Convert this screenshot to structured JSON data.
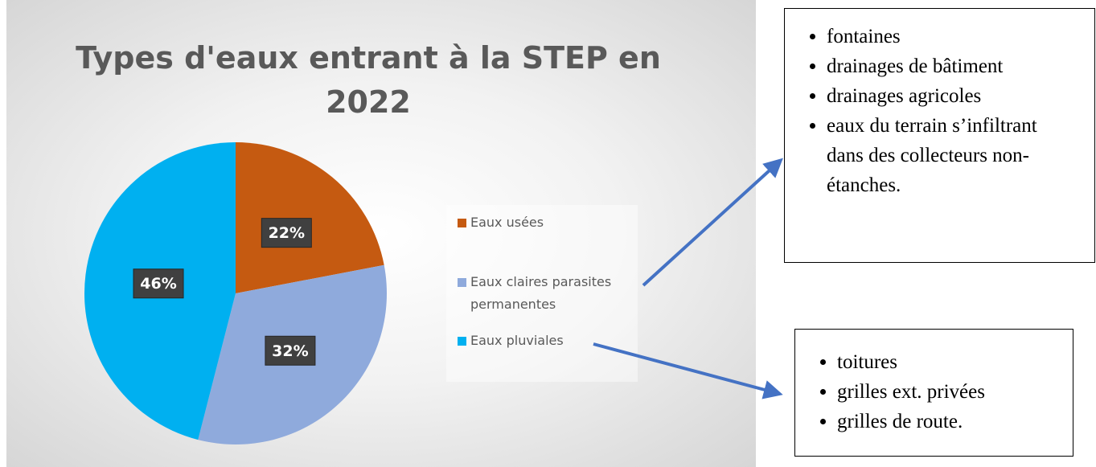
{
  "chart_data": {
    "type": "pie",
    "title": "Types d'eaux entrant à la STEP en 2022",
    "categories": [
      "Eaux usées",
      "Eaux claires parasites permanentes",
      "Eaux pluviales"
    ],
    "values": [
      22,
      32,
      46
    ],
    "value_labels": [
      "22%",
      "32%",
      "46%"
    ],
    "colors": [
      "#c55a11",
      "#8faadc",
      "#00b0f0"
    ],
    "legend": "right"
  },
  "text_boxes": [
    {
      "items": [
        "fontaines",
        "drainages de bâtiment",
        "drainages agricoles",
        "eaux du terrain s’infiltrant dans des collecteurs non-étanches."
      ]
    },
    {
      "items": [
        "toitures",
        "grilles ext. privées",
        "grilles de route."
      ]
    }
  ]
}
